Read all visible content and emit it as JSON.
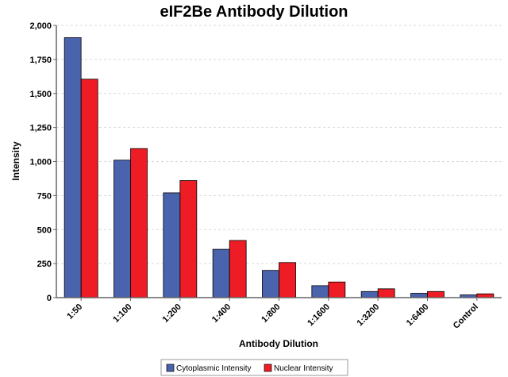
{
  "chart_data": {
    "type": "bar",
    "title": "eIF2Be Antibody Dilution",
    "xlabel": "Antibody Dilution",
    "ylabel": "Intensity",
    "categories": [
      "1:50",
      "1:100",
      "1:200",
      "1:400",
      "1:800",
      "1:1600",
      "1:3200",
      "1:6400",
      "Control"
    ],
    "series": [
      {
        "name": "Cytoplasmic Intensity",
        "color": "#4a63ad",
        "values": [
          1910,
          1010,
          770,
          355,
          200,
          88,
          45,
          32,
          20
        ]
      },
      {
        "name": "Nuclear Intensity",
        "color": "#ee1c24",
        "values": [
          1605,
          1095,
          860,
          420,
          258,
          115,
          65,
          45,
          28
        ]
      }
    ],
    "ylim": [
      0,
      2000
    ],
    "yticks": [
      "0",
      "250",
      "500",
      "750",
      "1,000",
      "1,250",
      "1,500",
      "1,750",
      "2,000"
    ],
    "grid": true,
    "legend_position": "bottom"
  }
}
